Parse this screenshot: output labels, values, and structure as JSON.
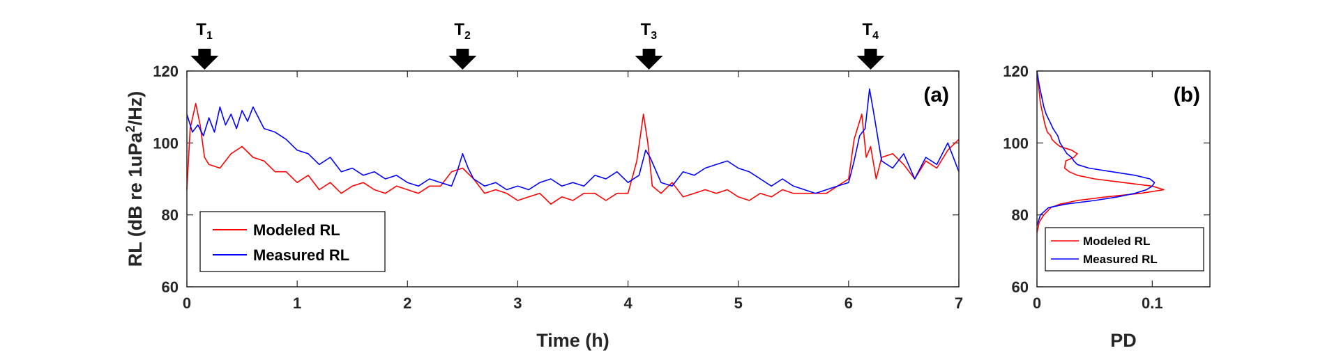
{
  "colors": {
    "modeled": "#ff0000",
    "measured": "#0000ff",
    "axis": "#262626"
  },
  "chart_data": [
    {
      "id": "a",
      "type": "line",
      "panel_label": "(a)",
      "xlabel": "Time (h)",
      "ylabel_main": "RL (dB re 1uPa",
      "ylabel_sup": "2",
      "ylabel_tail": "/Hz)",
      "xlim": [
        0,
        7
      ],
      "ylim": [
        60,
        120
      ],
      "xticks": [
        0,
        1,
        2,
        3,
        4,
        5,
        6,
        7
      ],
      "yticks": [
        60,
        80,
        100,
        120
      ],
      "legend_position": "bottom-left",
      "markers": [
        {
          "label": "T",
          "sub": "1",
          "x": 0.16
        },
        {
          "label": "T",
          "sub": "2",
          "x": 2.5
        },
        {
          "label": "T",
          "sub": "3",
          "x": 4.19
        },
        {
          "label": "T",
          "sub": "4",
          "x": 6.2
        }
      ],
      "series": [
        {
          "name": "Modeled RL",
          "color": "#ff0000",
          "x": [
            0,
            0.03,
            0.08,
            0.12,
            0.16,
            0.2,
            0.3,
            0.4,
            0.5,
            0.6,
            0.7,
            0.8,
            0.9,
            1.0,
            1.1,
            1.2,
            1.3,
            1.4,
            1.5,
            1.6,
            1.7,
            1.8,
            1.9,
            2.0,
            2.1,
            2.2,
            2.3,
            2.4,
            2.5,
            2.6,
            2.7,
            2.8,
            2.9,
            3.0,
            3.1,
            3.2,
            3.3,
            3.4,
            3.5,
            3.6,
            3.7,
            3.8,
            3.9,
            4.0,
            4.08,
            4.14,
            4.18,
            4.22,
            4.3,
            4.4,
            4.5,
            4.6,
            4.7,
            4.8,
            4.9,
            5.0,
            5.1,
            5.2,
            5.3,
            5.4,
            5.5,
            5.6,
            5.7,
            5.8,
            5.9,
            6.0,
            6.05,
            6.12,
            6.16,
            6.2,
            6.25,
            6.3,
            6.4,
            6.5,
            6.6,
            6.7,
            6.8,
            6.9,
            7.0
          ],
          "values": [
            87,
            104,
            111,
            105,
            96,
            94,
            93,
            97,
            99,
            96,
            95,
            92,
            92,
            89,
            91,
            87,
            89,
            86,
            88,
            89,
            87,
            86,
            88,
            87,
            86,
            88,
            88,
            92,
            93,
            90,
            86,
            87,
            86,
            84,
            85,
            86,
            83,
            85,
            84,
            86,
            86,
            84,
            86,
            86,
            95,
            108,
            100,
            88,
            86,
            89,
            85,
            86,
            87,
            86,
            87,
            85,
            84,
            86,
            85,
            87,
            86,
            86,
            86,
            86,
            88,
            90,
            101,
            108,
            96,
            99,
            90,
            96,
            97,
            94,
            90,
            95,
            93,
            98,
            101
          ]
        },
        {
          "name": "Measured RL",
          "color": "#0000ff",
          "x": [
            0,
            0.05,
            0.1,
            0.15,
            0.2,
            0.25,
            0.3,
            0.35,
            0.4,
            0.45,
            0.5,
            0.55,
            0.6,
            0.7,
            0.8,
            0.9,
            1.0,
            1.1,
            1.2,
            1.3,
            1.4,
            1.5,
            1.6,
            1.7,
            1.8,
            1.9,
            2.0,
            2.1,
            2.2,
            2.3,
            2.4,
            2.45,
            2.5,
            2.55,
            2.6,
            2.7,
            2.8,
            2.9,
            3.0,
            3.1,
            3.2,
            3.3,
            3.4,
            3.5,
            3.6,
            3.7,
            3.8,
            3.9,
            4.0,
            4.1,
            4.16,
            4.2,
            4.3,
            4.4,
            4.5,
            4.6,
            4.7,
            4.8,
            4.9,
            5.0,
            5.1,
            5.2,
            5.3,
            5.4,
            5.5,
            5.6,
            5.7,
            5.8,
            5.9,
            6.0,
            6.05,
            6.1,
            6.15,
            6.19,
            6.23,
            6.3,
            6.4,
            6.5,
            6.6,
            6.7,
            6.8,
            6.9,
            7.0
          ],
          "values": [
            108,
            103,
            105,
            102,
            107,
            103,
            110,
            105,
            108,
            104,
            109,
            106,
            110,
            104,
            103,
            101,
            98,
            97,
            94,
            96,
            92,
            93,
            91,
            92,
            90,
            91,
            89,
            88,
            90,
            89,
            88,
            92,
            97,
            93,
            90,
            88,
            89,
            87,
            88,
            87,
            89,
            90,
            88,
            89,
            88,
            91,
            90,
            92,
            89,
            91,
            98,
            96,
            89,
            88,
            92,
            91,
            93,
            94,
            95,
            93,
            92,
            90,
            88,
            90,
            88,
            87,
            86,
            87,
            88,
            89,
            95,
            102,
            104,
            115,
            108,
            95,
            93,
            97,
            90,
            96,
            94,
            100,
            92
          ]
        }
      ]
    },
    {
      "id": "b",
      "type": "line",
      "panel_label": "(b)",
      "xlabel": "PD",
      "xlim": [
        0,
        0.15
      ],
      "ylim": [
        60,
        120
      ],
      "xticks": [
        0,
        0.1
      ],
      "xtick_labels": [
        "0",
        "0.1"
      ],
      "yticks": [
        60,
        80,
        100,
        120
      ],
      "legend_position": "bottom-right",
      "series": [
        {
          "name": "Modeled RL",
          "color": "#ff0000",
          "y": [
            75,
            78,
            80,
            82,
            83,
            84,
            85,
            86,
            87,
            88,
            89,
            90,
            91,
            92,
            93,
            95,
            96,
            97,
            98,
            99,
            100,
            101,
            102,
            103,
            105,
            108,
            111,
            114,
            117,
            120
          ],
          "values": [
            0.0,
            0.002,
            0.006,
            0.012,
            0.02,
            0.035,
            0.06,
            0.09,
            0.11,
            0.1,
            0.075,
            0.05,
            0.035,
            0.028,
            0.024,
            0.025,
            0.032,
            0.035,
            0.03,
            0.02,
            0.016,
            0.013,
            0.012,
            0.009,
            0.007,
            0.005,
            0.003,
            0.002,
            0.001,
            0.0
          ]
        },
        {
          "name": "Measured RL",
          "color": "#0000ff",
          "y": [
            77,
            80,
            82,
            83,
            84,
            85,
            86,
            87,
            88,
            89,
            90,
            91,
            92,
            93,
            94,
            95,
            96,
            97,
            98,
            99,
            100,
            102,
            104,
            106,
            108,
            110,
            113,
            116,
            120
          ],
          "values": [
            0.0,
            0.003,
            0.01,
            0.025,
            0.05,
            0.07,
            0.085,
            0.095,
            0.1,
            0.102,
            0.098,
            0.085,
            0.065,
            0.045,
            0.035,
            0.032,
            0.03,
            0.026,
            0.024,
            0.022,
            0.02,
            0.018,
            0.014,
            0.011,
            0.008,
            0.006,
            0.004,
            0.002,
            0.0
          ]
        }
      ]
    }
  ]
}
